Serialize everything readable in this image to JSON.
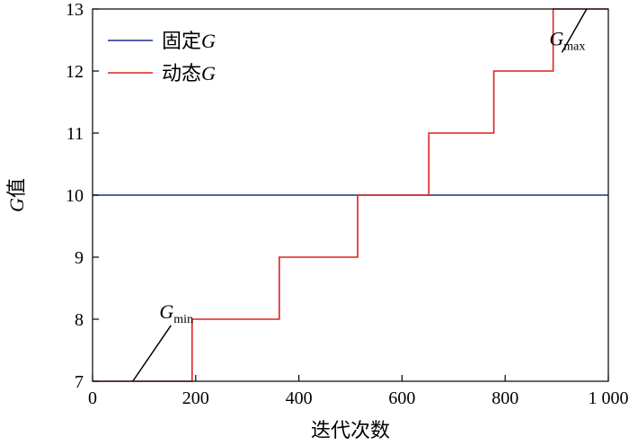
{
  "chart_data": {
    "type": "line",
    "xlabel": "迭代次数",
    "ylabel": {
      "italic": "G",
      "rest": "值"
    },
    "xlim": [
      0,
      1000
    ],
    "ylim": [
      7,
      13
    ],
    "x_ticks": [
      0,
      200,
      400,
      600,
      800,
      1000
    ],
    "x_tick_labels": [
      "0",
      "200",
      "400",
      "600",
      "800",
      "1 000"
    ],
    "y_ticks": [
      7,
      8,
      9,
      10,
      11,
      12,
      13
    ],
    "y_tick_labels": [
      "7",
      "8",
      "9",
      "10",
      "11",
      "12",
      "13"
    ],
    "grid": false,
    "legend_position": "top-left",
    "series": [
      {
        "name": {
          "text": "固定",
          "italic": "G"
        },
        "color": "#1f2d8c",
        "x": [
          0,
          1000
        ],
        "y": [
          10,
          10
        ]
      },
      {
        "name": {
          "text": "动态",
          "italic": "G"
        },
        "color": "#e0201f",
        "step": "post",
        "x": [
          0,
          193,
          362,
          514,
          652,
          778,
          893,
          1000
        ],
        "y": [
          7,
          8,
          9,
          10,
          11,
          12,
          13,
          13
        ]
      }
    ],
    "annotations": [
      {
        "main": "G",
        "sub": "min",
        "point": [
          78,
          7
        ],
        "label_at": [
          152,
          7.9
        ]
      },
      {
        "main": "G",
        "sub": "max",
        "point": [
          958,
          13
        ],
        "label_at": [
          910,
          12.3
        ]
      }
    ]
  }
}
